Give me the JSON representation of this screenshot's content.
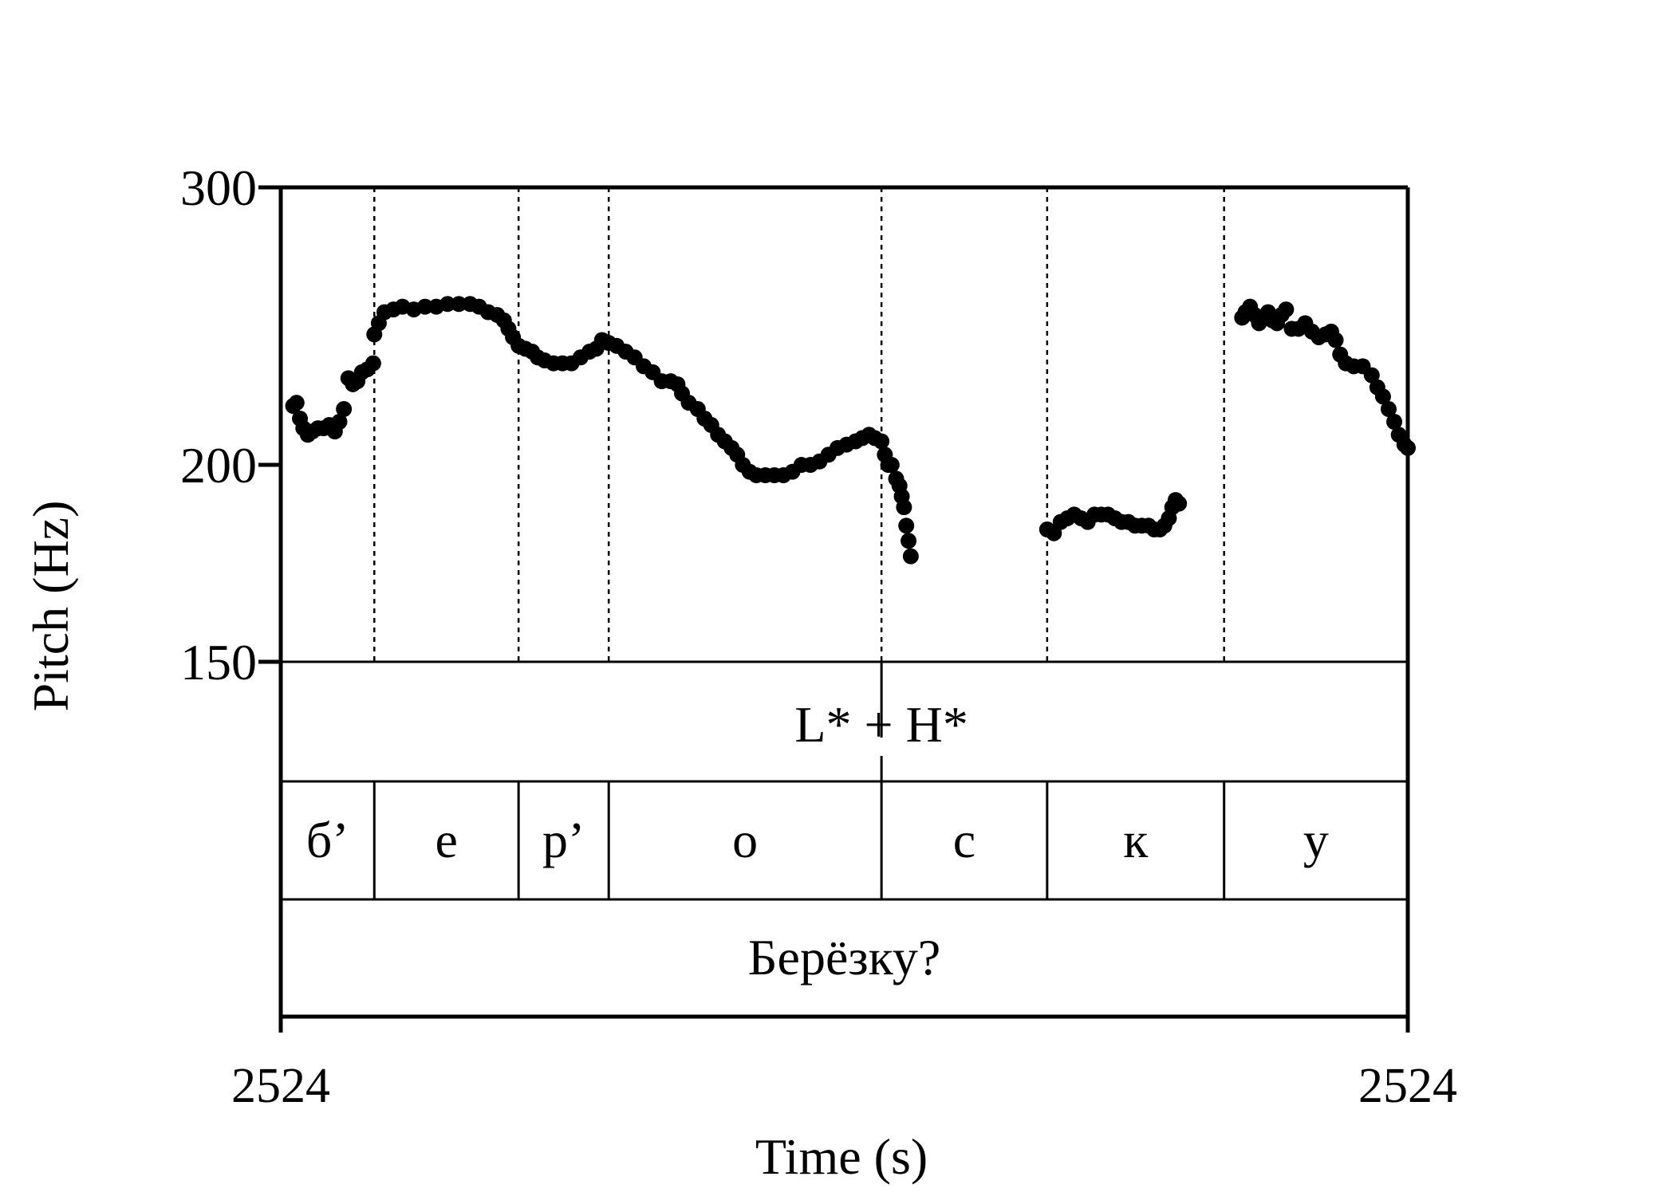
{
  "chart_data": {
    "type": "scatter",
    "title": "",
    "xlabel": "Time (s)",
    "ylabel": "Pitch (Hz)",
    "xlim": [
      0,
      1
    ],
    "ylim": [
      150,
      300
    ],
    "yscale": "log",
    "x_tick_labels": [
      "2524",
      "2524"
    ],
    "y_ticks": [
      150,
      200,
      300
    ],
    "y_tick_labels": [
      "150",
      "200",
      "300"
    ],
    "marker_color": "#000000",
    "tones": [
      {
        "label": "L* + H*",
        "time": 0.533
      }
    ],
    "segments": [
      {
        "label": "б’",
        "start": 0.0,
        "end": 0.083
      },
      {
        "label": "е",
        "start": 0.083,
        "end": 0.211
      },
      {
        "label": "р’",
        "start": 0.211,
        "end": 0.291
      },
      {
        "label": "о",
        "start": 0.291,
        "end": 0.533
      },
      {
        "label": "с",
        "start": 0.533,
        "end": 0.68
      },
      {
        "label": "к",
        "start": 0.68,
        "end": 0.837
      },
      {
        "label": "у",
        "start": 0.837,
        "end": 1.0
      }
    ],
    "word": "Берёзку?",
    "pitch_points": [
      [
        0.011,
        218
      ],
      [
        0.014,
        219
      ],
      [
        0.017,
        214
      ],
      [
        0.02,
        211
      ],
      [
        0.024,
        209
      ],
      [
        0.028,
        210
      ],
      [
        0.033,
        211
      ],
      [
        0.038,
        211
      ],
      [
        0.043,
        212
      ],
      [
        0.048,
        210
      ],
      [
        0.052,
        213
      ],
      [
        0.056,
        217
      ],
      [
        0.06,
        227
      ],
      [
        0.064,
        225
      ],
      [
        0.068,
        226
      ],
      [
        0.072,
        229
      ],
      [
        0.077,
        230
      ],
      [
        0.082,
        232
      ],
      [
        0.083,
        242
      ],
      [
        0.087,
        246
      ],
      [
        0.092,
        250
      ],
      [
        0.1,
        251
      ],
      [
        0.108,
        252
      ],
      [
        0.118,
        251
      ],
      [
        0.128,
        252
      ],
      [
        0.138,
        252
      ],
      [
        0.148,
        253
      ],
      [
        0.158,
        253
      ],
      [
        0.168,
        253
      ],
      [
        0.176,
        252
      ],
      [
        0.184,
        250
      ],
      [
        0.192,
        249
      ],
      [
        0.198,
        247
      ],
      [
        0.202,
        244
      ],
      [
        0.206,
        241
      ],
      [
        0.211,
        238
      ],
      [
        0.217,
        237
      ],
      [
        0.223,
        236
      ],
      [
        0.228,
        234
      ],
      [
        0.234,
        233
      ],
      [
        0.242,
        232
      ],
      [
        0.25,
        232
      ],
      [
        0.258,
        232
      ],
      [
        0.266,
        234
      ],
      [
        0.274,
        236
      ],
      [
        0.28,
        237
      ],
      [
        0.285,
        240
      ],
      [
        0.291,
        239
      ],
      [
        0.298,
        238
      ],
      [
        0.306,
        236
      ],
      [
        0.314,
        234
      ],
      [
        0.322,
        231
      ],
      [
        0.33,
        229
      ],
      [
        0.338,
        226
      ],
      [
        0.346,
        226
      ],
      [
        0.352,
        225
      ],
      [
        0.356,
        222
      ],
      [
        0.362,
        219
      ],
      [
        0.37,
        217
      ],
      [
        0.376,
        214
      ],
      [
        0.382,
        212
      ],
      [
        0.388,
        209
      ],
      [
        0.394,
        207
      ],
      [
        0.4,
        205
      ],
      [
        0.405,
        203
      ],
      [
        0.41,
        200
      ],
      [
        0.416,
        198
      ],
      [
        0.422,
        197
      ],
      [
        0.43,
        197
      ],
      [
        0.438,
        197
      ],
      [
        0.446,
        197
      ],
      [
        0.454,
        198
      ],
      [
        0.462,
        200
      ],
      [
        0.47,
        200
      ],
      [
        0.478,
        201
      ],
      [
        0.486,
        203
      ],
      [
        0.494,
        205
      ],
      [
        0.502,
        206
      ],
      [
        0.51,
        207
      ],
      [
        0.516,
        208
      ],
      [
        0.522,
        209
      ],
      [
        0.527,
        208
      ],
      [
        0.533,
        207
      ],
      [
        0.536,
        203
      ],
      [
        0.539,
        200
      ],
      [
        0.542,
        200
      ],
      [
        0.546,
        196
      ],
      [
        0.549,
        194
      ],
      [
        0.551,
        191
      ],
      [
        0.553,
        188
      ],
      [
        0.555,
        183
      ],
      [
        0.557,
        179
      ],
      [
        0.559,
        175
      ],
      [
        0.68,
        182
      ],
      [
        0.686,
        181
      ],
      [
        0.692,
        184
      ],
      [
        0.698,
        185
      ],
      [
        0.704,
        186
      ],
      [
        0.71,
        185
      ],
      [
        0.716,
        184
      ],
      [
        0.722,
        186
      ],
      [
        0.728,
        186
      ],
      [
        0.734,
        186
      ],
      [
        0.74,
        185
      ],
      [
        0.746,
        184
      ],
      [
        0.752,
        184
      ],
      [
        0.758,
        183
      ],
      [
        0.764,
        183
      ],
      [
        0.77,
        183
      ],
      [
        0.775,
        182
      ],
      [
        0.78,
        182
      ],
      [
        0.784,
        183
      ],
      [
        0.788,
        185
      ],
      [
        0.791,
        188
      ],
      [
        0.794,
        190
      ],
      [
        0.797,
        189
      ],
      [
        0.853,
        248
      ],
      [
        0.856,
        250
      ],
      [
        0.86,
        252
      ],
      [
        0.864,
        249
      ],
      [
        0.868,
        246
      ],
      [
        0.872,
        248
      ],
      [
        0.876,
        250
      ],
      [
        0.88,
        247
      ],
      [
        0.884,
        246
      ],
      [
        0.888,
        249
      ],
      [
        0.892,
        251
      ],
      [
        0.897,
        244
      ],
      [
        0.903,
        244
      ],
      [
        0.909,
        246
      ],
      [
        0.915,
        243
      ],
      [
        0.921,
        241
      ],
      [
        0.927,
        242
      ],
      [
        0.932,
        243
      ],
      [
        0.936,
        240
      ],
      [
        0.94,
        235
      ],
      [
        0.945,
        232
      ],
      [
        0.952,
        231
      ],
      [
        0.96,
        231
      ],
      [
        0.968,
        228
      ],
      [
        0.973,
        224
      ],
      [
        0.978,
        221
      ],
      [
        0.983,
        217
      ],
      [
        0.988,
        213
      ],
      [
        0.992,
        209
      ],
      [
        0.997,
        206
      ],
      [
        1.0,
        205
      ]
    ]
  }
}
